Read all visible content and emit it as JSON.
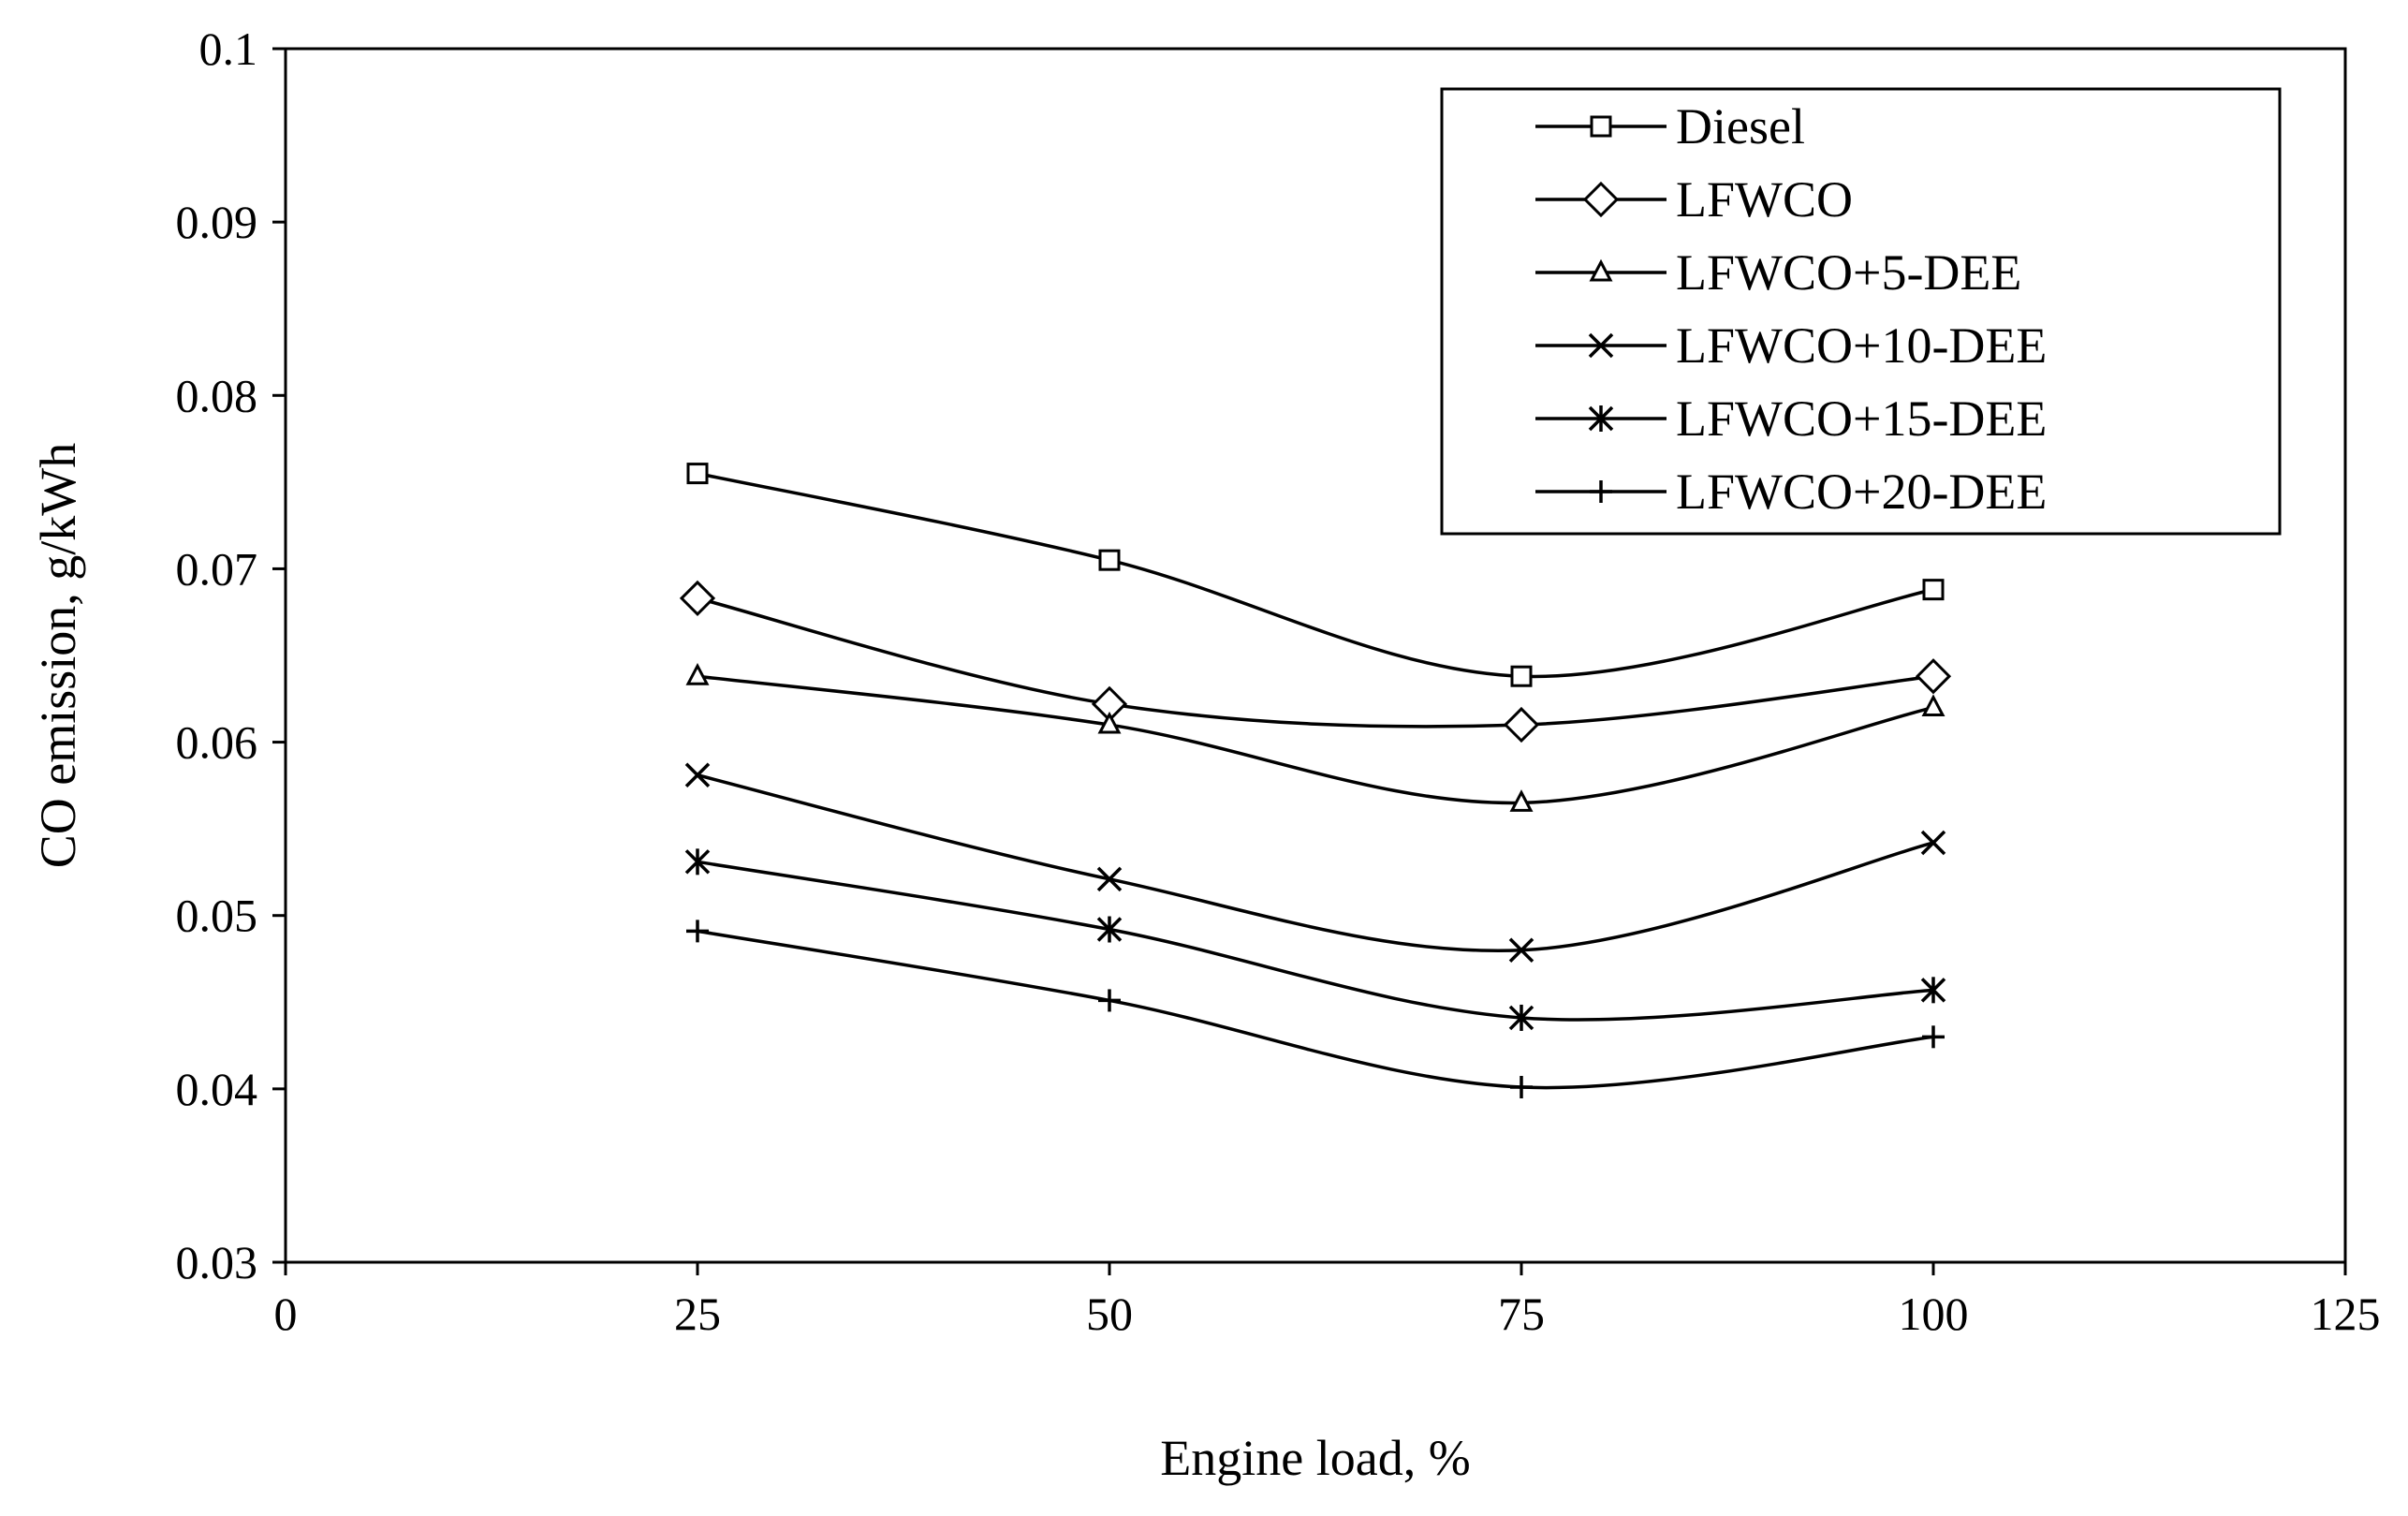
{
  "chart_data": {
    "type": "line",
    "title": "",
    "xlabel": "Engine load, %",
    "ylabel": "CO emission, g/kWh",
    "xlim": [
      0,
      125
    ],
    "ylim": [
      0.03,
      0.1
    ],
    "xticks": [
      0,
      25,
      50,
      75,
      100,
      125
    ],
    "xtick_labels": [
      "0",
      "25",
      "50",
      "75",
      "100",
      "125"
    ],
    "yticks": [
      0.03,
      0.04,
      0.05,
      0.06,
      0.07,
      0.08,
      0.09,
      0.1
    ],
    "ytick_labels": [
      "0.03",
      "0.04",
      "0.05",
      "0.06",
      "0.07",
      "0.08",
      "0.09",
      "0.1"
    ],
    "grid": false,
    "legend_position": "top-right",
    "x": [
      25,
      50,
      75,
      100
    ],
    "series": [
      {
        "name": "Diesel",
        "marker": "square",
        "values": [
          0.0755,
          0.0705,
          0.0638,
          0.0688
        ]
      },
      {
        "name": "LFWCO",
        "marker": "diamond",
        "values": [
          0.0683,
          0.0622,
          0.061,
          0.0638
        ]
      },
      {
        "name": "LFWCO+5-DEE",
        "marker": "triangle",
        "values": [
          0.0638,
          0.061,
          0.0565,
          0.062
        ]
      },
      {
        "name": "LFWCO+10-DEE",
        "marker": "x",
        "values": [
          0.0581,
          0.0521,
          0.048,
          0.0542
        ]
      },
      {
        "name": "LFWCO+15-DEE",
        "marker": "asterisk",
        "values": [
          0.0531,
          0.0492,
          0.0441,
          0.0457
        ]
      },
      {
        "name": "LFWCO+20-DEE",
        "marker": "plus",
        "values": [
          0.0491,
          0.0451,
          0.0401,
          0.043
        ]
      }
    ]
  }
}
